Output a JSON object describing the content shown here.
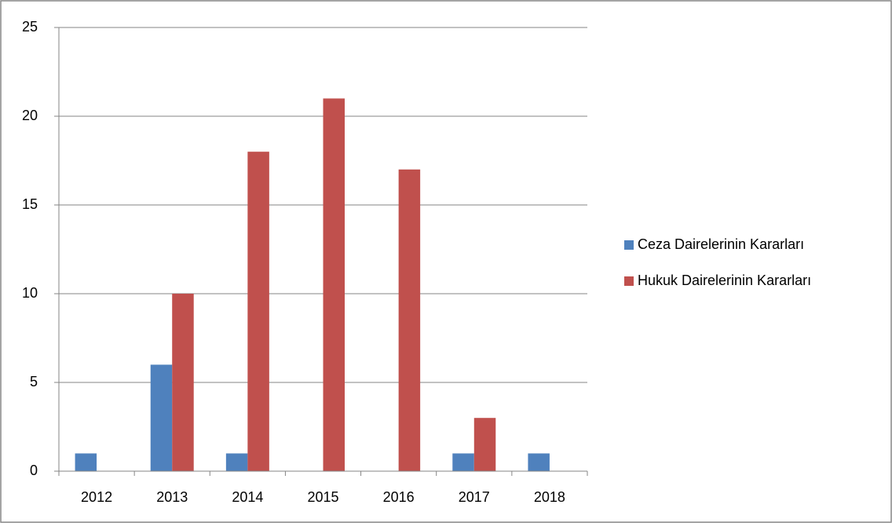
{
  "chart_data": {
    "type": "bar",
    "categories": [
      "2012",
      "2013",
      "2014",
      "2015",
      "2016",
      "2017",
      "2018"
    ],
    "series": [
      {
        "name": "Ceza Dairelerinin Kararları",
        "color": "#4f81bd",
        "values": [
          1,
          6,
          1,
          0,
          0,
          1,
          1
        ]
      },
      {
        "name": "Hukuk Dairelerinin Kararları",
        "color": "#c0504d",
        "values": [
          0,
          10,
          18,
          21,
          17,
          3,
          0
        ]
      }
    ],
    "ylim": [
      0,
      25
    ],
    "yticks": [
      0,
      5,
      10,
      15,
      20,
      25
    ],
    "grid": true,
    "legend": "right"
  }
}
